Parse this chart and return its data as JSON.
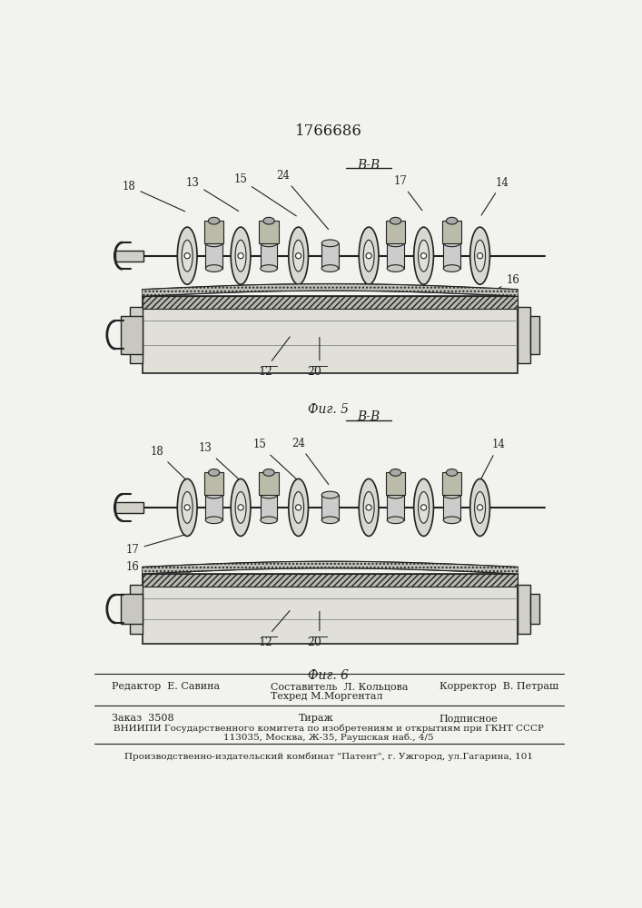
{
  "patent_number": "1766686",
  "fig5_label": "В-В",
  "fig5_caption": "Фиг. 5",
  "fig6_label": "В-В",
  "fig6_caption": "Фиг. 6",
  "bg_color": "#f2f2ee",
  "line_color": "#222222",
  "footer_line1_left": "Редактор  Е. Савина",
  "footer_line1_center1": "Составитель  Л. Кольцова",
  "footer_line1_center2": "Техред М.Моргентал",
  "footer_line1_right": "Корректор  В. Петраш",
  "footer_line2_left": "Заказ  3508",
  "footer_line2_center": "Тираж",
  "footer_line2_right": "Подписное",
  "footer_line3": "ВНИИПИ Государственного комитета по изобретениям и открытиям при ГКНТ СССР",
  "footer_line4": "113035, Москва, Ж-35, Раушская наб., 4/5",
  "footer_line5": "Производственно-издательский комбинат \"Патент\", г. Ужгород, ул.Гагарина, 101"
}
